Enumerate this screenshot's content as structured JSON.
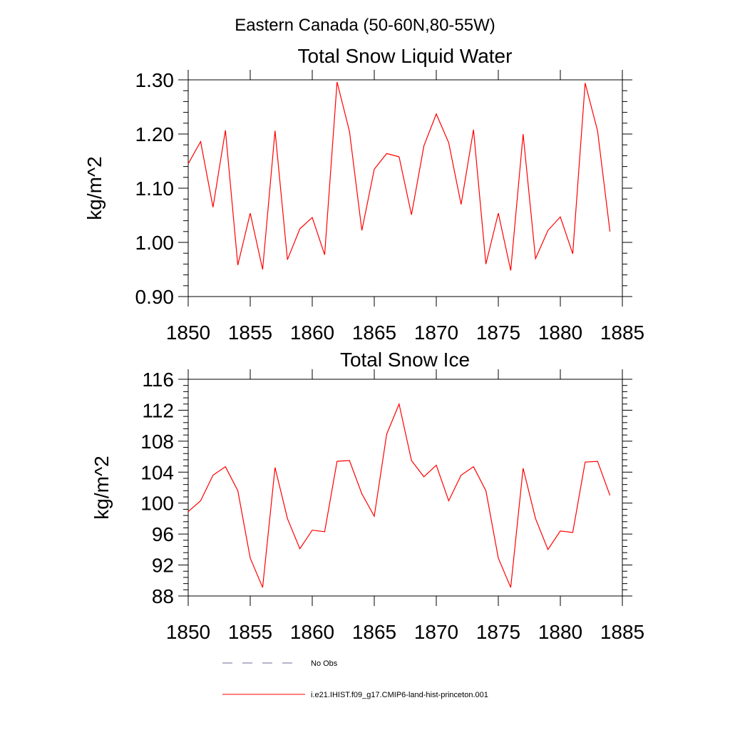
{
  "title": "Eastern Canada (50-60N,80-55W)",
  "x": [
    1850,
    1851,
    1852,
    1853,
    1854,
    1855,
    1856,
    1857,
    1858,
    1859,
    1860,
    1861,
    1862,
    1863,
    1864,
    1865,
    1866,
    1867,
    1868,
    1869,
    1870,
    1871,
    1872,
    1873,
    1874,
    1875,
    1876,
    1877,
    1878,
    1879,
    1880,
    1881,
    1882,
    1883,
    1884
  ],
  "xticks": [
    "1850",
    "1855",
    "1860",
    "1865",
    "1870",
    "1875",
    "1880",
    "1885"
  ],
  "chart_data": [
    {
      "type": "line",
      "title": "Total Snow Liquid Water",
      "xlabel": "",
      "ylabel": "kg/m^2",
      "xlim": [
        1850,
        1885
      ],
      "ylim": [
        0.9,
        1.3
      ],
      "yticks": [
        "0.90",
        "1.00",
        "1.10",
        "1.20",
        "1.30"
      ],
      "series": [
        {
          "name": "i.e21.IHIST.f09_g17.CMIP6-land-hist-princeton.001",
          "color": "#ff0000",
          "values": [
            1.145,
            1.186,
            1.065,
            1.207,
            0.958,
            1.054,
            0.95,
            1.206,
            0.968,
            1.025,
            1.046,
            0.977,
            1.296,
            1.205,
            1.022,
            1.135,
            1.164,
            1.158,
            1.051,
            1.178,
            1.237,
            1.184,
            1.07,
            1.208,
            0.96,
            1.054,
            0.948,
            1.2,
            0.97,
            1.022,
            1.047,
            0.979,
            1.294,
            1.206,
            1.02
          ]
        }
      ]
    },
    {
      "type": "line",
      "title": "Total Snow Ice",
      "xlabel": "",
      "ylabel": "kg/m^2",
      "xlim": [
        1850,
        1885
      ],
      "ylim": [
        88,
        116
      ],
      "yticks": [
        "88",
        "92",
        "96",
        "100",
        "104",
        "108",
        "112",
        "116"
      ],
      "series": [
        {
          "name": "i.e21.IHIST.f09_g17.CMIP6-land-hist-princeton.001",
          "color": "#ff0000",
          "values": [
            98.9,
            100.3,
            103.6,
            104.7,
            101.6,
            92.9,
            89.1,
            104.6,
            98.0,
            94.1,
            96.5,
            96.3,
            105.4,
            105.5,
            101.2,
            98.3,
            108.9,
            112.8,
            105.5,
            103.4,
            104.9,
            100.3,
            103.6,
            104.7,
            101.6,
            92.9,
            89.1,
            104.5,
            98.0,
            94.0,
            96.4,
            96.2,
            105.3,
            105.4,
            101.0
          ]
        }
      ]
    }
  ],
  "legend": [
    {
      "label": "No Obs",
      "color": "#6b6b99",
      "style": "dashed"
    },
    {
      "label": "i.e21.IHIST.f09_g17.CMIP6-land-hist-princeton.001",
      "color": "#ff0000",
      "style": "solid"
    }
  ]
}
